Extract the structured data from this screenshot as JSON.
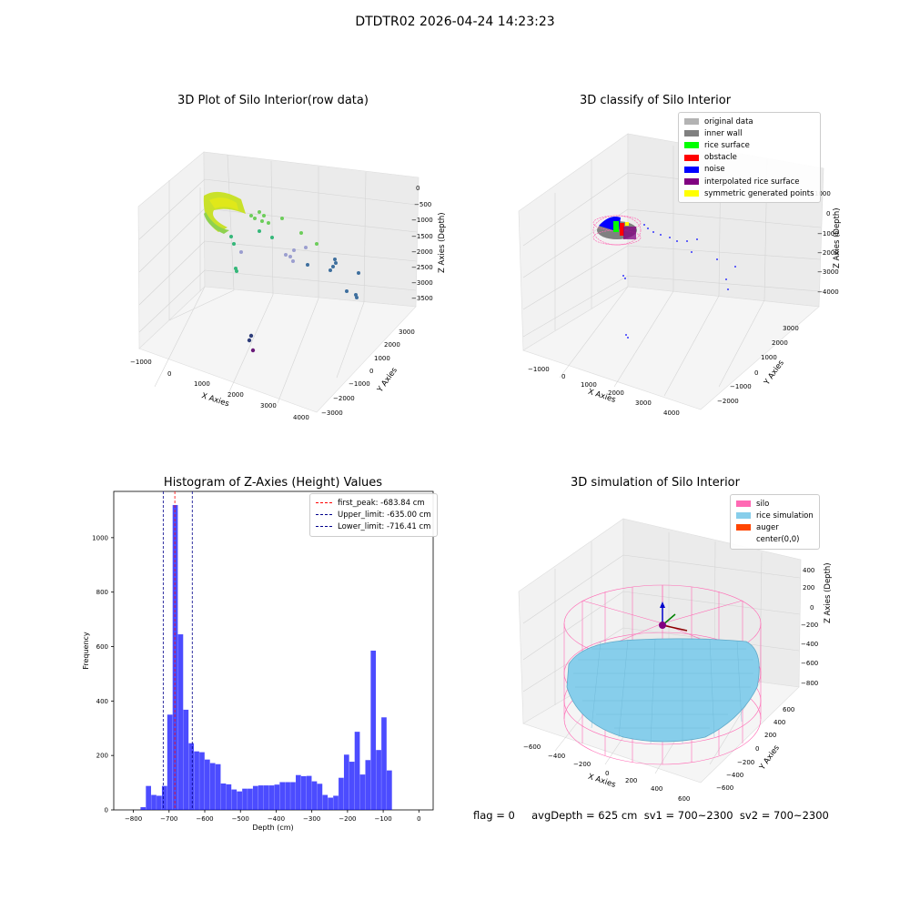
{
  "figure_title": "DTDTR02 2026-04-24 14:23:23",
  "panels": {
    "p1": {
      "title": "3D Plot of Silo Interior(row data)",
      "xlabel": "X Axies",
      "ylabel": "Y Axies",
      "zlabel": "Z Axies (Depth)",
      "xticks": [
        "−1000",
        "0",
        "1000",
        "2000",
        "3000",
        "4000"
      ],
      "yticks": [
        "−3000",
        "−2000",
        "−1000",
        "0",
        "1000",
        "2000",
        "3000"
      ],
      "zticks": [
        "0",
        "−500",
        "−1000",
        "−1500",
        "−2000",
        "−2500",
        "−3000",
        "−3500"
      ]
    },
    "p2": {
      "title": "3D classify of Silo Interior",
      "xlabel": "X Axies",
      "ylabel": "Y Axies",
      "zlabel": "Z Axies (Depth)",
      "xticks": [
        "−1000",
        "0",
        "1000",
        "2000",
        "3000",
        "4000"
      ],
      "yticks": [
        "−2000",
        "−1000",
        "0",
        "1000",
        "2000",
        "3000"
      ],
      "zticks": [
        "1000",
        "0",
        "−1000",
        "−2000",
        "−3000",
        "−4000"
      ],
      "legend": [
        {
          "label": "original data",
          "color": "#b3b3b3"
        },
        {
          "label": "inner wall",
          "color": "#808080"
        },
        {
          "label": "rice surface",
          "color": "#00ff00"
        },
        {
          "label": "obstacle",
          "color": "#ff0000"
        },
        {
          "label": "noise",
          "color": "#0000ff"
        },
        {
          "label": "interpolated rice surface",
          "color": "#800080"
        },
        {
          "label": "symmetric generated points",
          "color": "#ffff00"
        }
      ]
    },
    "p4": {
      "title": "3D simulation of Silo Interior",
      "xlabel": "X Axies",
      "ylabel": "Y Axies",
      "zlabel": "Z Axies (Depth)",
      "xticks": [
        "−600",
        "−400",
        "−200",
        "0",
        "200",
        "400",
        "600"
      ],
      "yticks": [
        "−600",
        "−400",
        "−200",
        "0",
        "200",
        "400",
        "600"
      ],
      "zticks": [
        "400",
        "200",
        "0",
        "−200",
        "−400",
        "−600",
        "−800"
      ],
      "legend": [
        {
          "label": "silo",
          "color": "#ff69b4"
        },
        {
          "label": "rice simulation",
          "color": "#87ceeb"
        },
        {
          "label": "auger",
          "color": "#ff4500"
        },
        {
          "label": "center(0,0)",
          "color": ""
        }
      ]
    }
  },
  "chart_data": [
    {
      "type": "bar",
      "title": "Histogram of Z-Axies (Height) Values",
      "xlabel": "Depth (cm)",
      "ylabel": "Frequency",
      "xlim": [
        -855,
        40
      ],
      "ylim": [
        0,
        1170
      ],
      "xticks": [
        -800,
        -700,
        -600,
        -500,
        -400,
        -300,
        -200,
        -100,
        0
      ],
      "yticks": [
        0,
        200,
        400,
        600,
        800,
        1000
      ],
      "bar_color": "#0000ff",
      "bin_start": -780,
      "bin_width": 15,
      "values": [
        10,
        88,
        55,
        52,
        88,
        350,
        1120,
        645,
        368,
        245,
        215,
        212,
        185,
        172,
        168,
        97,
        94,
        75,
        68,
        78,
        78,
        88,
        90,
        90,
        90,
        93,
        102,
        102,
        102,
        128,
        124,
        125,
        105,
        96,
        55,
        45,
        52,
        118,
        203,
        177,
        287,
        130,
        183,
        585,
        220,
        340,
        145
      ],
      "lines": [
        {
          "label": "first_peak: -683.84 cm",
          "x": -683.84,
          "color": "#ff0000"
        },
        {
          "label": "Upper_limit: -635.00 cm",
          "x": -635.0,
          "color": "#00008b"
        },
        {
          "label": "Lower_limit: -716.41 cm",
          "x": -716.41,
          "color": "#00008b"
        }
      ],
      "legend": "top-right"
    }
  ],
  "footer": {
    "text": "flag = 0     avgDepth = 625 cm  sv1 = 700~2300  sv2 = 700~2300"
  }
}
